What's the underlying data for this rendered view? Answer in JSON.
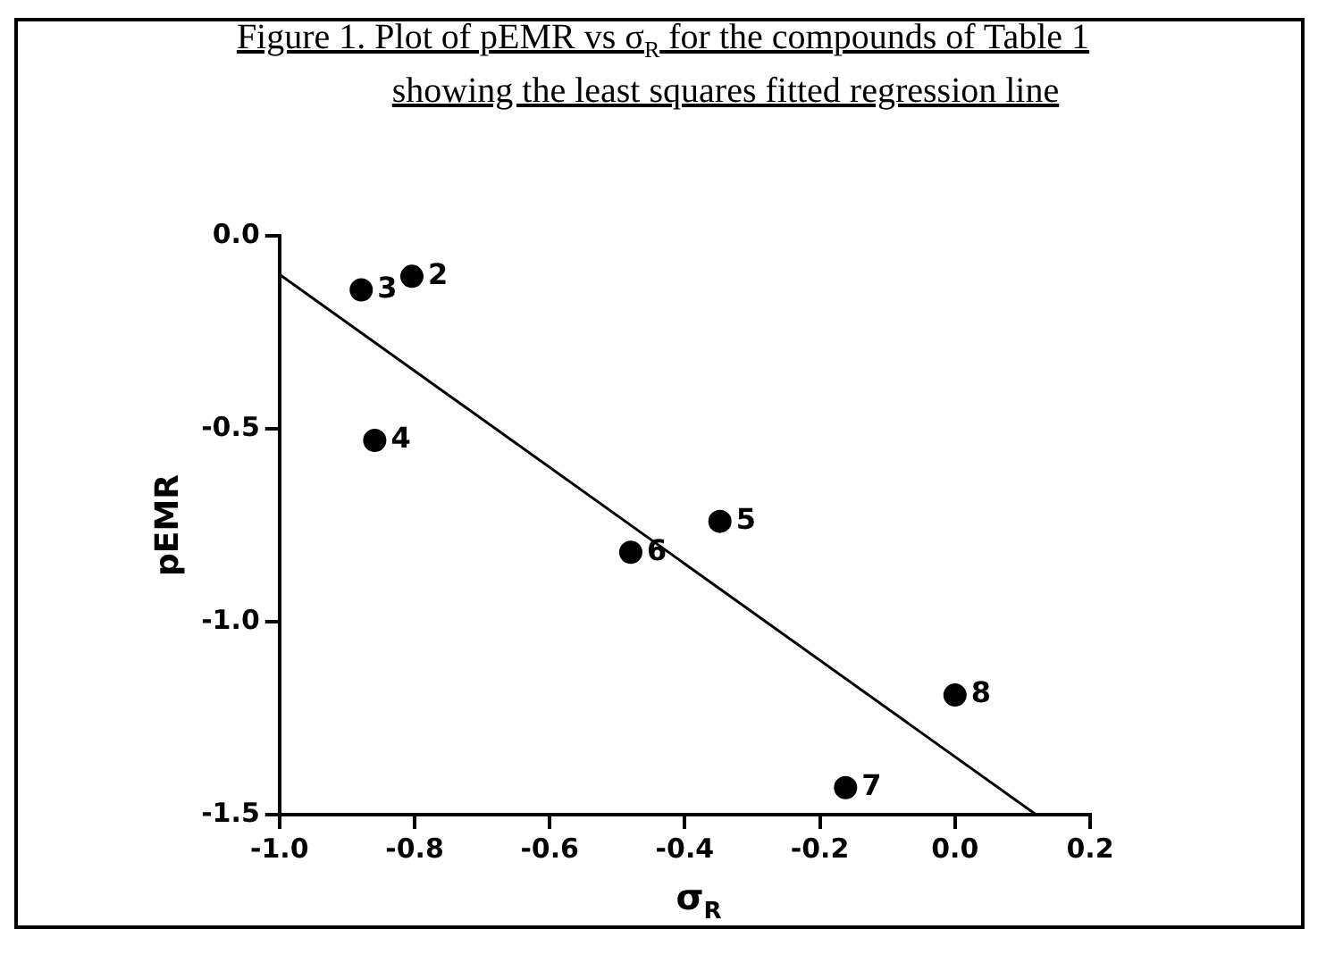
{
  "chart_data": {
    "type": "scatter",
    "title": "Figure 1.  Plot of pEMR vs σ$_{R}$ for the compounds of Table 1",
    "subtitle": "showing the least squares fitted regression line",
    "xlabel": "σ$_{R}$",
    "ylabel": "pEMR",
    "series": [
      {
        "color": "#000000",
        "marker": "circle",
        "x": [
          -0.804,
          -0.879,
          -0.859,
          -0.348,
          -0.48,
          -0.162,
          0.0
        ],
        "values": [
          -0.105,
          -0.14,
          -0.53,
          -0.74,
          -0.82,
          -1.43,
          -1.19
        ]
      },
      {
        "type": "line",
        "color": "#000000",
        "marker": "none",
        "line_style": "solid",
        "x": [
          -1.0,
          0.12
        ],
        "values": [
          -0.1,
          -1.5
        ]
      }
    ],
    "xlim": [
      -1.0,
      0.2
    ],
    "ylim": [
      -1.5,
      0.0
    ],
    "xticks": [
      {
        "value": -1.0,
        "label": "-1.0"
      },
      {
        "value": -0.8,
        "label": "-0.8"
      },
      {
        "value": -0.6,
        "label": "-0.6"
      },
      {
        "value": -0.4,
        "label": "-0.4"
      },
      {
        "value": -0.2,
        "label": "-0.2"
      },
      {
        "value": 0.0,
        "label": "0.0"
      },
      {
        "value": 0.2,
        "label": "0.2"
      }
    ],
    "yticks": [
      {
        "value": -1.5,
        "label": "-1.5"
      },
      {
        "value": -1.0,
        "label": "-1.0"
      },
      {
        "value": -0.5,
        "label": "-0.5"
      },
      {
        "value": 0.0,
        "label": "0.0"
      }
    ],
    "annotations": [
      {
        "text": "2",
        "x": -0.804,
        "y": -0.105
      },
      {
        "text": "3",
        "x": -0.879,
        "y": -0.14
      },
      {
        "text": "4",
        "x": -0.859,
        "y": -0.53
      },
      {
        "text": "5",
        "x": -0.348,
        "y": -0.74
      },
      {
        "text": "6",
        "x": -0.48,
        "y": -0.82
      },
      {
        "text": "7",
        "x": -0.162,
        "y": -1.43
      },
      {
        "text": "8",
        "x": 0.0,
        "y": -1.19
      }
    ],
    "grid": false,
    "legend": false
  }
}
